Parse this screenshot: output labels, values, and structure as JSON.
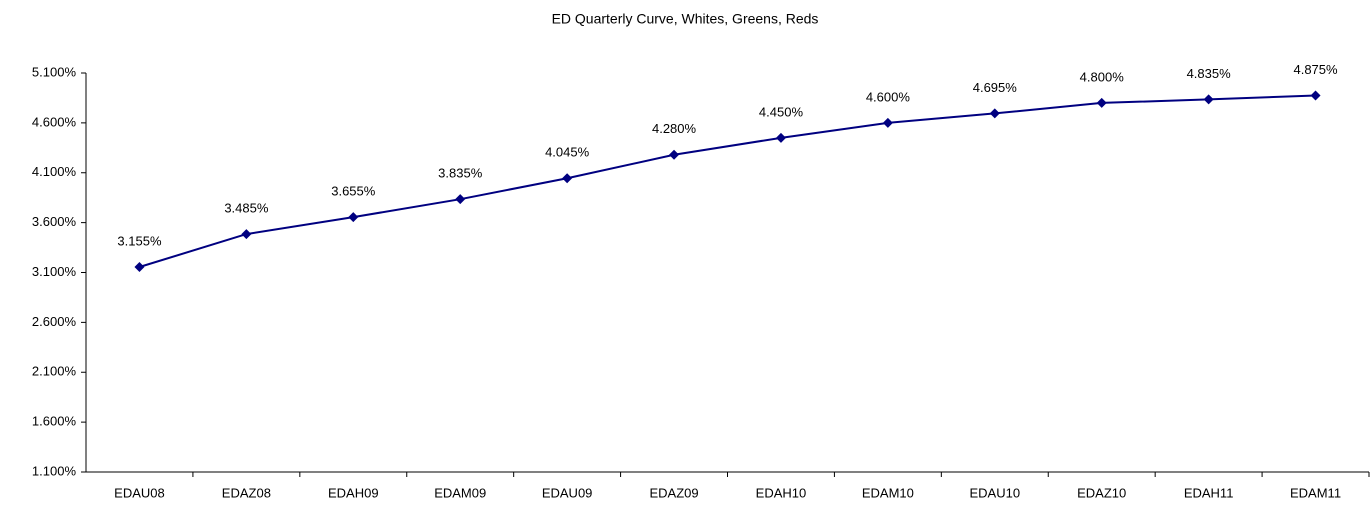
{
  "chart_data": {
    "type": "line",
    "title": "ED Quarterly Curve, Whites, Greens, Reds",
    "categories": [
      "EDAU08",
      "EDAZ08",
      "EDAH09",
      "EDAM09",
      "EDAU09",
      "EDAZ09",
      "EDAH10",
      "EDAM10",
      "EDAU10",
      "EDAZ10",
      "EDAH11",
      "EDAM11"
    ],
    "values": [
      3.155,
      3.485,
      3.655,
      3.835,
      4.045,
      4.28,
      4.45,
      4.6,
      4.695,
      4.8,
      4.835,
      4.875
    ],
    "value_labels": [
      "3.155%",
      "3.485%",
      "3.655%",
      "3.835%",
      "4.045%",
      "4.280%",
      "4.450%",
      "4.600%",
      "4.695%",
      "4.800%",
      "4.835%",
      "4.875%"
    ],
    "color": "#000080",
    "ylim": [
      1.1,
      5.1
    ],
    "yticks": [
      {
        "value": 1.1,
        "label": "1.100%"
      },
      {
        "value": 1.6,
        "label": "1.600%"
      },
      {
        "value": 2.1,
        "label": "2.100%"
      },
      {
        "value": 2.6,
        "label": "2.600%"
      },
      {
        "value": 3.1,
        "label": "3.100%"
      },
      {
        "value": 3.6,
        "label": "3.600%"
      },
      {
        "value": 4.1,
        "label": "4.100%"
      },
      {
        "value": 4.6,
        "label": "4.600%"
      },
      {
        "value": 5.1,
        "label": "5.100%"
      }
    ],
    "grid": false
  }
}
